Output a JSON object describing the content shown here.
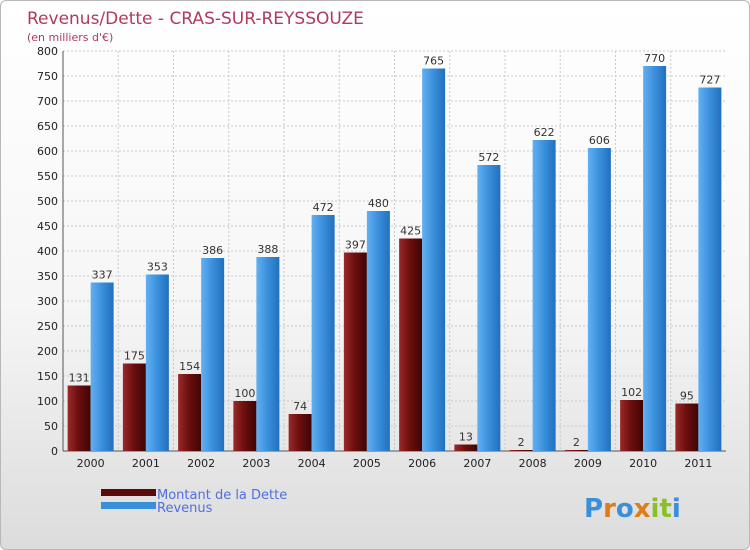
{
  "chart_data": {
    "type": "bar",
    "title": "Revenus/Dette - CRAS-SUR-REYSSOUZE",
    "subtitle": "(en milliers d'€)",
    "categories": [
      "2000",
      "2001",
      "2002",
      "2003",
      "2004",
      "2005",
      "2006",
      "2007",
      "2008",
      "2009",
      "2010",
      "2011"
    ],
    "series": [
      {
        "name": "Montant de la Dette",
        "color": "#7a1515",
        "values": [
          131,
          175,
          154,
          100,
          74,
          397,
          425,
          13,
          2,
          2,
          102,
          95
        ]
      },
      {
        "name": "Revenus",
        "color": "#3a8fdb",
        "values": [
          337,
          353,
          386,
          388,
          472,
          480,
          765,
          572,
          622,
          606,
          770,
          727
        ]
      }
    ],
    "ylim": [
      0,
      800
    ],
    "yticks": [
      0,
      50,
      100,
      150,
      200,
      250,
      300,
      350,
      400,
      450,
      500,
      550,
      600,
      650,
      700,
      750,
      800
    ],
    "grid": true,
    "legend": "bottom-left"
  },
  "logo": {
    "text": "Proxiti"
  }
}
